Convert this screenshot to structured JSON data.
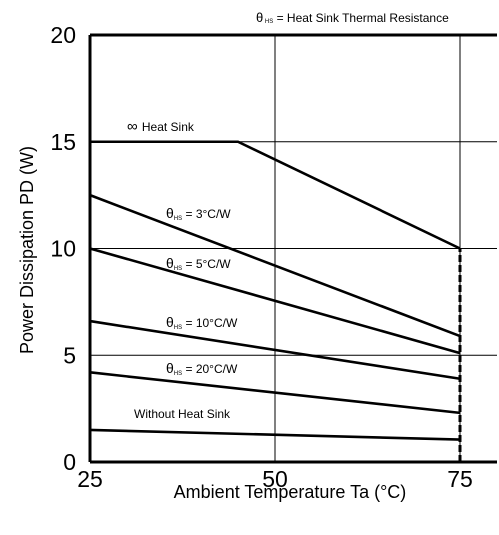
{
  "chart_data": {
    "type": "line",
    "xlabel": "Ambient Temperature Ta (°C)",
    "ylabel": "Power Dissipation PD (W)",
    "x_ticks": [
      "25",
      "50",
      "75"
    ],
    "y_ticks": [
      "0",
      "5",
      "10",
      "15",
      "20"
    ],
    "xlim": [
      25,
      80
    ],
    "ylim": [
      0,
      20
    ],
    "grid": true,
    "legend_note": {
      "symbol": "θ",
      "subscript": "HS",
      "text": " = Heat Sink Thermal Resistance"
    },
    "series": [
      {
        "name": "∞ Heat Sink",
        "label_main": "Heat Sink",
        "label_symbol": "∞",
        "x": [
          25,
          45,
          75
        ],
        "y": [
          15,
          15,
          10
        ]
      },
      {
        "name": "θHS = 3°C/W",
        "label_symbol": "θ",
        "label_sub": "HS",
        "label_main": " = 3°C/W",
        "x": [
          25,
          75
        ],
        "y": [
          12.5,
          5.9
        ]
      },
      {
        "name": "θHS = 5°C/W",
        "label_symbol": "θ",
        "label_sub": "HS",
        "label_main": " = 5°C/W",
        "x": [
          25,
          75
        ],
        "y": [
          10,
          5.1
        ]
      },
      {
        "name": "θHS = 10°C/W",
        "label_symbol": "θ",
        "label_sub": "HS",
        "label_main": " = 10°C/W",
        "x": [
          25,
          75
        ],
        "y": [
          6.6,
          3.9
        ]
      },
      {
        "name": "θHS = 20°C/W",
        "label_symbol": "θ",
        "label_sub": "HS",
        "label_main": " = 20°C/W",
        "x": [
          25,
          75
        ],
        "y": [
          4.2,
          2.3
        ]
      },
      {
        "name": "Without Heat Sink",
        "label_main": "Without Heat Sink",
        "x": [
          25,
          75
        ],
        "y": [
          1.5,
          1.05
        ]
      }
    ],
    "cutoff_line": {
      "x": 75,
      "y": [
        0,
        10
      ],
      "style": "dashed"
    }
  }
}
